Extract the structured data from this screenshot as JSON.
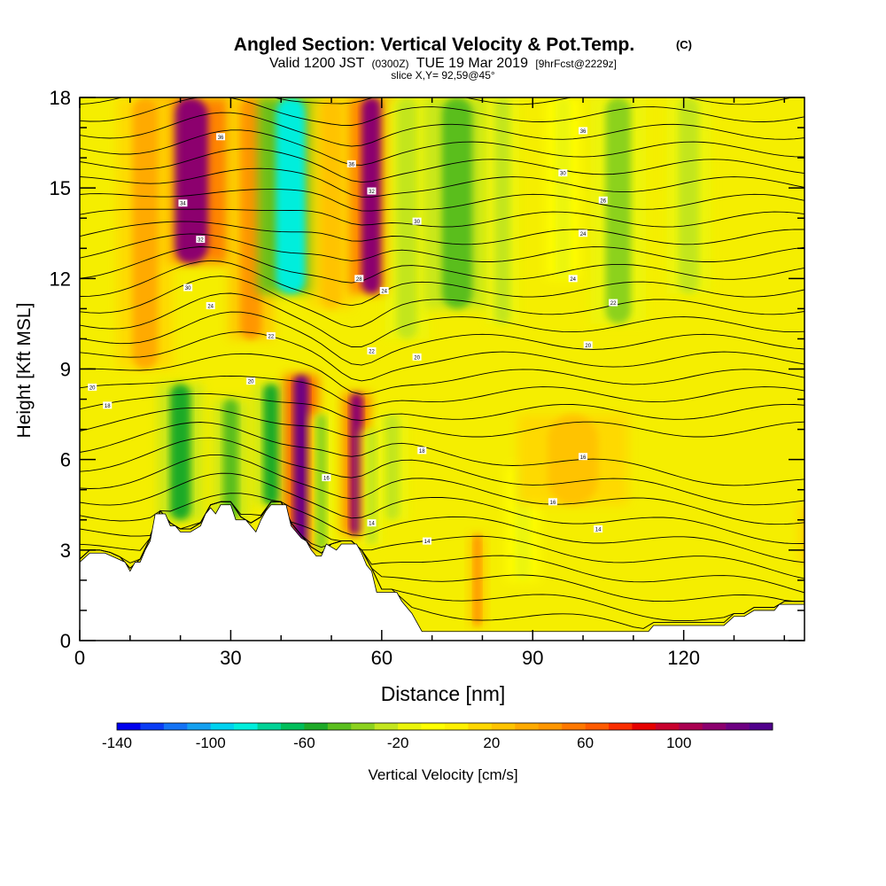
{
  "chart_data": {
    "type": "heatmap",
    "title": "Angled Section: Vertical Velocity & Pot.Temp.",
    "title_tag": "(C)",
    "subtitle": {
      "valid": "Valid 1200 JST",
      "utc": "(0300Z)",
      "date": "TUE 19 Mar 2019",
      "forecast": "[9hrFcst@2229z]",
      "full": "Valid 1200 JST (0300Z) TUE 19 Mar 2019 [9hrFcst@2229z]"
    },
    "slice_label": "slice X,Y= 92,59@45°",
    "xlabel": "Distance [nm]",
    "ylabel": "Height [Kft MSL]",
    "xlim": [
      0,
      144
    ],
    "ylim": [
      0,
      18
    ],
    "x_ticks": [
      "0",
      "30",
      "60",
      "90",
      "120"
    ],
    "x_tick_values": [
      0,
      30,
      60,
      90,
      120
    ],
    "y_ticks": [
      "0",
      "3",
      "6",
      "9",
      "12",
      "15",
      "18"
    ],
    "y_tick_values": [
      0,
      3,
      6,
      9,
      12,
      15,
      18
    ],
    "colorbar": {
      "label": "Vertical Velocity [cm/s]",
      "min": -140,
      "max": 140,
      "step": 10,
      "tick_labels": [
        "-140",
        "-100",
        "-60",
        "-20",
        "20",
        "60",
        "100"
      ],
      "tick_values": [
        -140,
        -100,
        -60,
        -20,
        20,
        60,
        100
      ],
      "colors": [
        "#0000ee",
        "#0a3cf5",
        "#1473f5",
        "#14a0f0",
        "#00d2f0",
        "#00eedc",
        "#00d296",
        "#00be5a",
        "#1eaa28",
        "#5abe1e",
        "#8cd21e",
        "#c3e61e",
        "#ebf50a",
        "#ffff00",
        "#fff000",
        "#ffd700",
        "#ffc300",
        "#ffaa00",
        "#ff9600",
        "#ff7800",
        "#ff5a00",
        "#fa2d00",
        "#e60000",
        "#c8002d",
        "#aa0050",
        "#8c006e",
        "#6e0082",
        "#50008c"
      ]
    },
    "velocity_columns": [
      {
        "x": 22,
        "top_y": 18,
        "bottom_y": 12.5,
        "value": 110,
        "width": 7
      },
      {
        "x": 13,
        "top_y": 18,
        "bottom_y": 9,
        "value": 30,
        "width": 5
      },
      {
        "x": 34,
        "top_y": 18,
        "bottom_y": 10,
        "value": 40,
        "width": 4
      },
      {
        "x": 42,
        "top_y": 18,
        "bottom_y": 11.5,
        "value": -90,
        "width": 6
      },
      {
        "x": 50,
        "top_y": 18,
        "bottom_y": 11,
        "value": 25,
        "width": 4
      },
      {
        "x": 58,
        "top_y": 18,
        "bottom_y": 11.5,
        "value": 110,
        "width": 4
      },
      {
        "x": 65,
        "top_y": 18,
        "bottom_y": 10,
        "value": -30,
        "width": 4
      },
      {
        "x": 75,
        "top_y": 18,
        "bottom_y": 11,
        "value": -45,
        "width": 6
      },
      {
        "x": 84,
        "top_y": 18,
        "bottom_y": 10.5,
        "value": -25,
        "width": 3
      },
      {
        "x": 96,
        "top_y": 18,
        "bottom_y": 12,
        "value": -20,
        "width": 3
      },
      {
        "x": 107,
        "top_y": 18,
        "bottom_y": 10.5,
        "value": -35,
        "width": 5
      },
      {
        "x": 121,
        "top_y": 18,
        "bottom_y": 11.5,
        "value": -25,
        "width": 4
      },
      {
        "x": 20,
        "top_y": 8.5,
        "bottom_y": 4,
        "value": -55,
        "width": 4
      },
      {
        "x": 30,
        "top_y": 8,
        "bottom_y": 4,
        "value": -45,
        "width": 3
      },
      {
        "x": 38,
        "top_y": 8.5,
        "bottom_y": 4.5,
        "value": -60,
        "width": 3
      },
      {
        "x": 44,
        "top_y": 8.8,
        "bottom_y": 3,
        "value": 120,
        "width": 3
      },
      {
        "x": 48,
        "top_y": 7.5,
        "bottom_y": 3,
        "value": -40,
        "width": 2
      },
      {
        "x": 55,
        "top_y": 8.2,
        "bottom_y": 3.5,
        "value": 110,
        "width": 2.5
      },
      {
        "x": 62,
        "top_y": 7.5,
        "bottom_y": 4,
        "value": -30,
        "width": 3
      },
      {
        "x": 58,
        "top_y": 7,
        "bottom_y": 3.2,
        "value": -25,
        "width": 2
      },
      {
        "x": 88,
        "top_y": 5.8,
        "bottom_y": 2,
        "value": -15,
        "width": 3
      },
      {
        "x": 98,
        "top_y": 7.5,
        "bottom_y": 4.5,
        "value": 25,
        "width": 10
      },
      {
        "x": 145,
        "top_y": 4.5,
        "bottom_y": 2.5,
        "value": 35,
        "width": 2
      },
      {
        "x": 79,
        "top_y": 3.5,
        "bottom_y": 0.5,
        "value": 40,
        "width": 1.5
      }
    ],
    "theta_contour_labels": [
      {
        "x": 28,
        "y": 16.7,
        "text": "36"
      },
      {
        "x": 54,
        "y": 15.8,
        "text": "36"
      },
      {
        "x": 100,
        "y": 16.9,
        "text": "36"
      },
      {
        "x": 96,
        "y": 15.5,
        "text": "30"
      },
      {
        "x": 20.5,
        "y": 14.5,
        "text": "34"
      },
      {
        "x": 58,
        "y": 14.9,
        "text": "32"
      },
      {
        "x": 67,
        "y": 13.9,
        "text": "30"
      },
      {
        "x": 104,
        "y": 14.6,
        "text": "26"
      },
      {
        "x": 100,
        "y": 13.5,
        "text": "24"
      },
      {
        "x": 24,
        "y": 13.3,
        "text": "32"
      },
      {
        "x": 55.5,
        "y": 12.0,
        "text": "28"
      },
      {
        "x": 98,
        "y": 12.0,
        "text": "24"
      },
      {
        "x": 21.5,
        "y": 11.7,
        "text": "30"
      },
      {
        "x": 60.5,
        "y": 11.6,
        "text": "24"
      },
      {
        "x": 106,
        "y": 11.2,
        "text": "22"
      },
      {
        "x": 26,
        "y": 11.1,
        "text": "24"
      },
      {
        "x": 38,
        "y": 10.1,
        "text": "22"
      },
      {
        "x": 58,
        "y": 9.6,
        "text": "22"
      },
      {
        "x": 67,
        "y": 9.4,
        "text": "20"
      },
      {
        "x": 101,
        "y": 9.8,
        "text": "20"
      },
      {
        "x": 2.5,
        "y": 8.4,
        "text": "20"
      },
      {
        "x": 34,
        "y": 8.6,
        "text": "20"
      },
      {
        "x": 5.5,
        "y": 7.8,
        "text": "18"
      },
      {
        "x": 68,
        "y": 6.3,
        "text": "18"
      },
      {
        "x": 100,
        "y": 6.1,
        "text": "16"
      },
      {
        "x": 49,
        "y": 5.4,
        "text": "16"
      },
      {
        "x": 94,
        "y": 4.6,
        "text": "16"
      },
      {
        "x": 58,
        "y": 3.9,
        "text": "14"
      },
      {
        "x": 69,
        "y": 3.3,
        "text": "14"
      },
      {
        "x": 103,
        "y": 3.7,
        "text": "14"
      }
    ],
    "terrain_profile": [
      [
        0,
        2.6
      ],
      [
        2,
        2.9
      ],
      [
        5,
        2.9
      ],
      [
        9,
        2.6
      ],
      [
        10,
        2.3
      ],
      [
        11,
        2.6
      ],
      [
        12,
        2.6
      ],
      [
        13,
        3.0
      ],
      [
        14,
        3.3
      ],
      [
        15,
        4.2
      ],
      [
        17,
        4.2
      ],
      [
        18,
        3.8
      ],
      [
        19,
        3.8
      ],
      [
        20,
        3.6
      ],
      [
        22,
        3.6
      ],
      [
        24,
        3.8
      ],
      [
        25,
        4.2
      ],
      [
        26,
        4.4
      ],
      [
        27,
        4.2
      ],
      [
        28,
        4.5
      ],
      [
        30,
        4.5
      ],
      [
        31,
        4.0
      ],
      [
        33,
        4.0
      ],
      [
        34,
        3.8
      ],
      [
        35,
        3.6
      ],
      [
        36,
        4.0
      ],
      [
        37,
        4.3
      ],
      [
        38,
        4.5
      ],
      [
        41,
        4.5
      ],
      [
        42,
        3.8
      ],
      [
        44,
        3.4
      ],
      [
        45,
        3.3
      ],
      [
        46,
        3.0
      ],
      [
        47,
        2.8
      ],
      [
        48,
        2.8
      ],
      [
        49,
        3.2
      ],
      [
        51,
        3.0
      ],
      [
        52,
        3.2
      ],
      [
        55,
        3.2
      ],
      [
        56,
        2.9
      ],
      [
        57,
        2.5
      ],
      [
        58,
        2.3
      ],
      [
        59,
        1.6
      ],
      [
        63,
        1.6
      ],
      [
        64,
        1.3
      ],
      [
        66,
        0.9
      ],
      [
        67,
        0.6
      ],
      [
        68,
        0.3
      ],
      [
        80,
        0.3
      ],
      [
        100,
        0.3
      ],
      [
        113,
        0.3
      ],
      [
        114,
        0.5
      ],
      [
        128,
        0.5
      ],
      [
        130,
        0.8
      ],
      [
        132,
        0.8
      ],
      [
        134,
        1.0
      ],
      [
        138,
        1.0
      ],
      [
        139,
        1.2
      ],
      [
        144,
        1.2
      ]
    ]
  }
}
